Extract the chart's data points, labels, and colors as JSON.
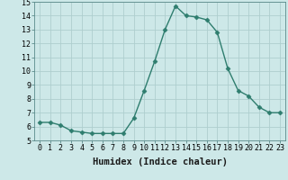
{
  "x": [
    0,
    1,
    2,
    3,
    4,
    5,
    6,
    7,
    8,
    9,
    10,
    11,
    12,
    13,
    14,
    15,
    16,
    17,
    18,
    19,
    20,
    21,
    22,
    23
  ],
  "y": [
    6.3,
    6.3,
    6.1,
    5.7,
    5.6,
    5.5,
    5.5,
    5.5,
    5.5,
    6.6,
    8.6,
    10.7,
    13.0,
    14.7,
    14.0,
    13.9,
    13.7,
    12.8,
    10.2,
    8.6,
    8.2,
    7.4,
    7.0,
    7.0
  ],
  "line_color": "#2e7d6e",
  "marker": "D",
  "marker_size": 2.5,
  "bg_color": "#cde8e8",
  "grid_color": "#aecece",
  "xlabel": "Humidex (Indice chaleur)",
  "ylim": [
    5,
    15
  ],
  "xlim": [
    -0.5,
    23.5
  ],
  "yticks": [
    5,
    6,
    7,
    8,
    9,
    10,
    11,
    12,
    13,
    14,
    15
  ],
  "xticks": [
    0,
    1,
    2,
    3,
    4,
    5,
    6,
    7,
    8,
    9,
    10,
    11,
    12,
    13,
    14,
    15,
    16,
    17,
    18,
    19,
    20,
    21,
    22,
    23
  ],
  "tick_fontsize": 6,
  "label_fontsize": 7.5
}
